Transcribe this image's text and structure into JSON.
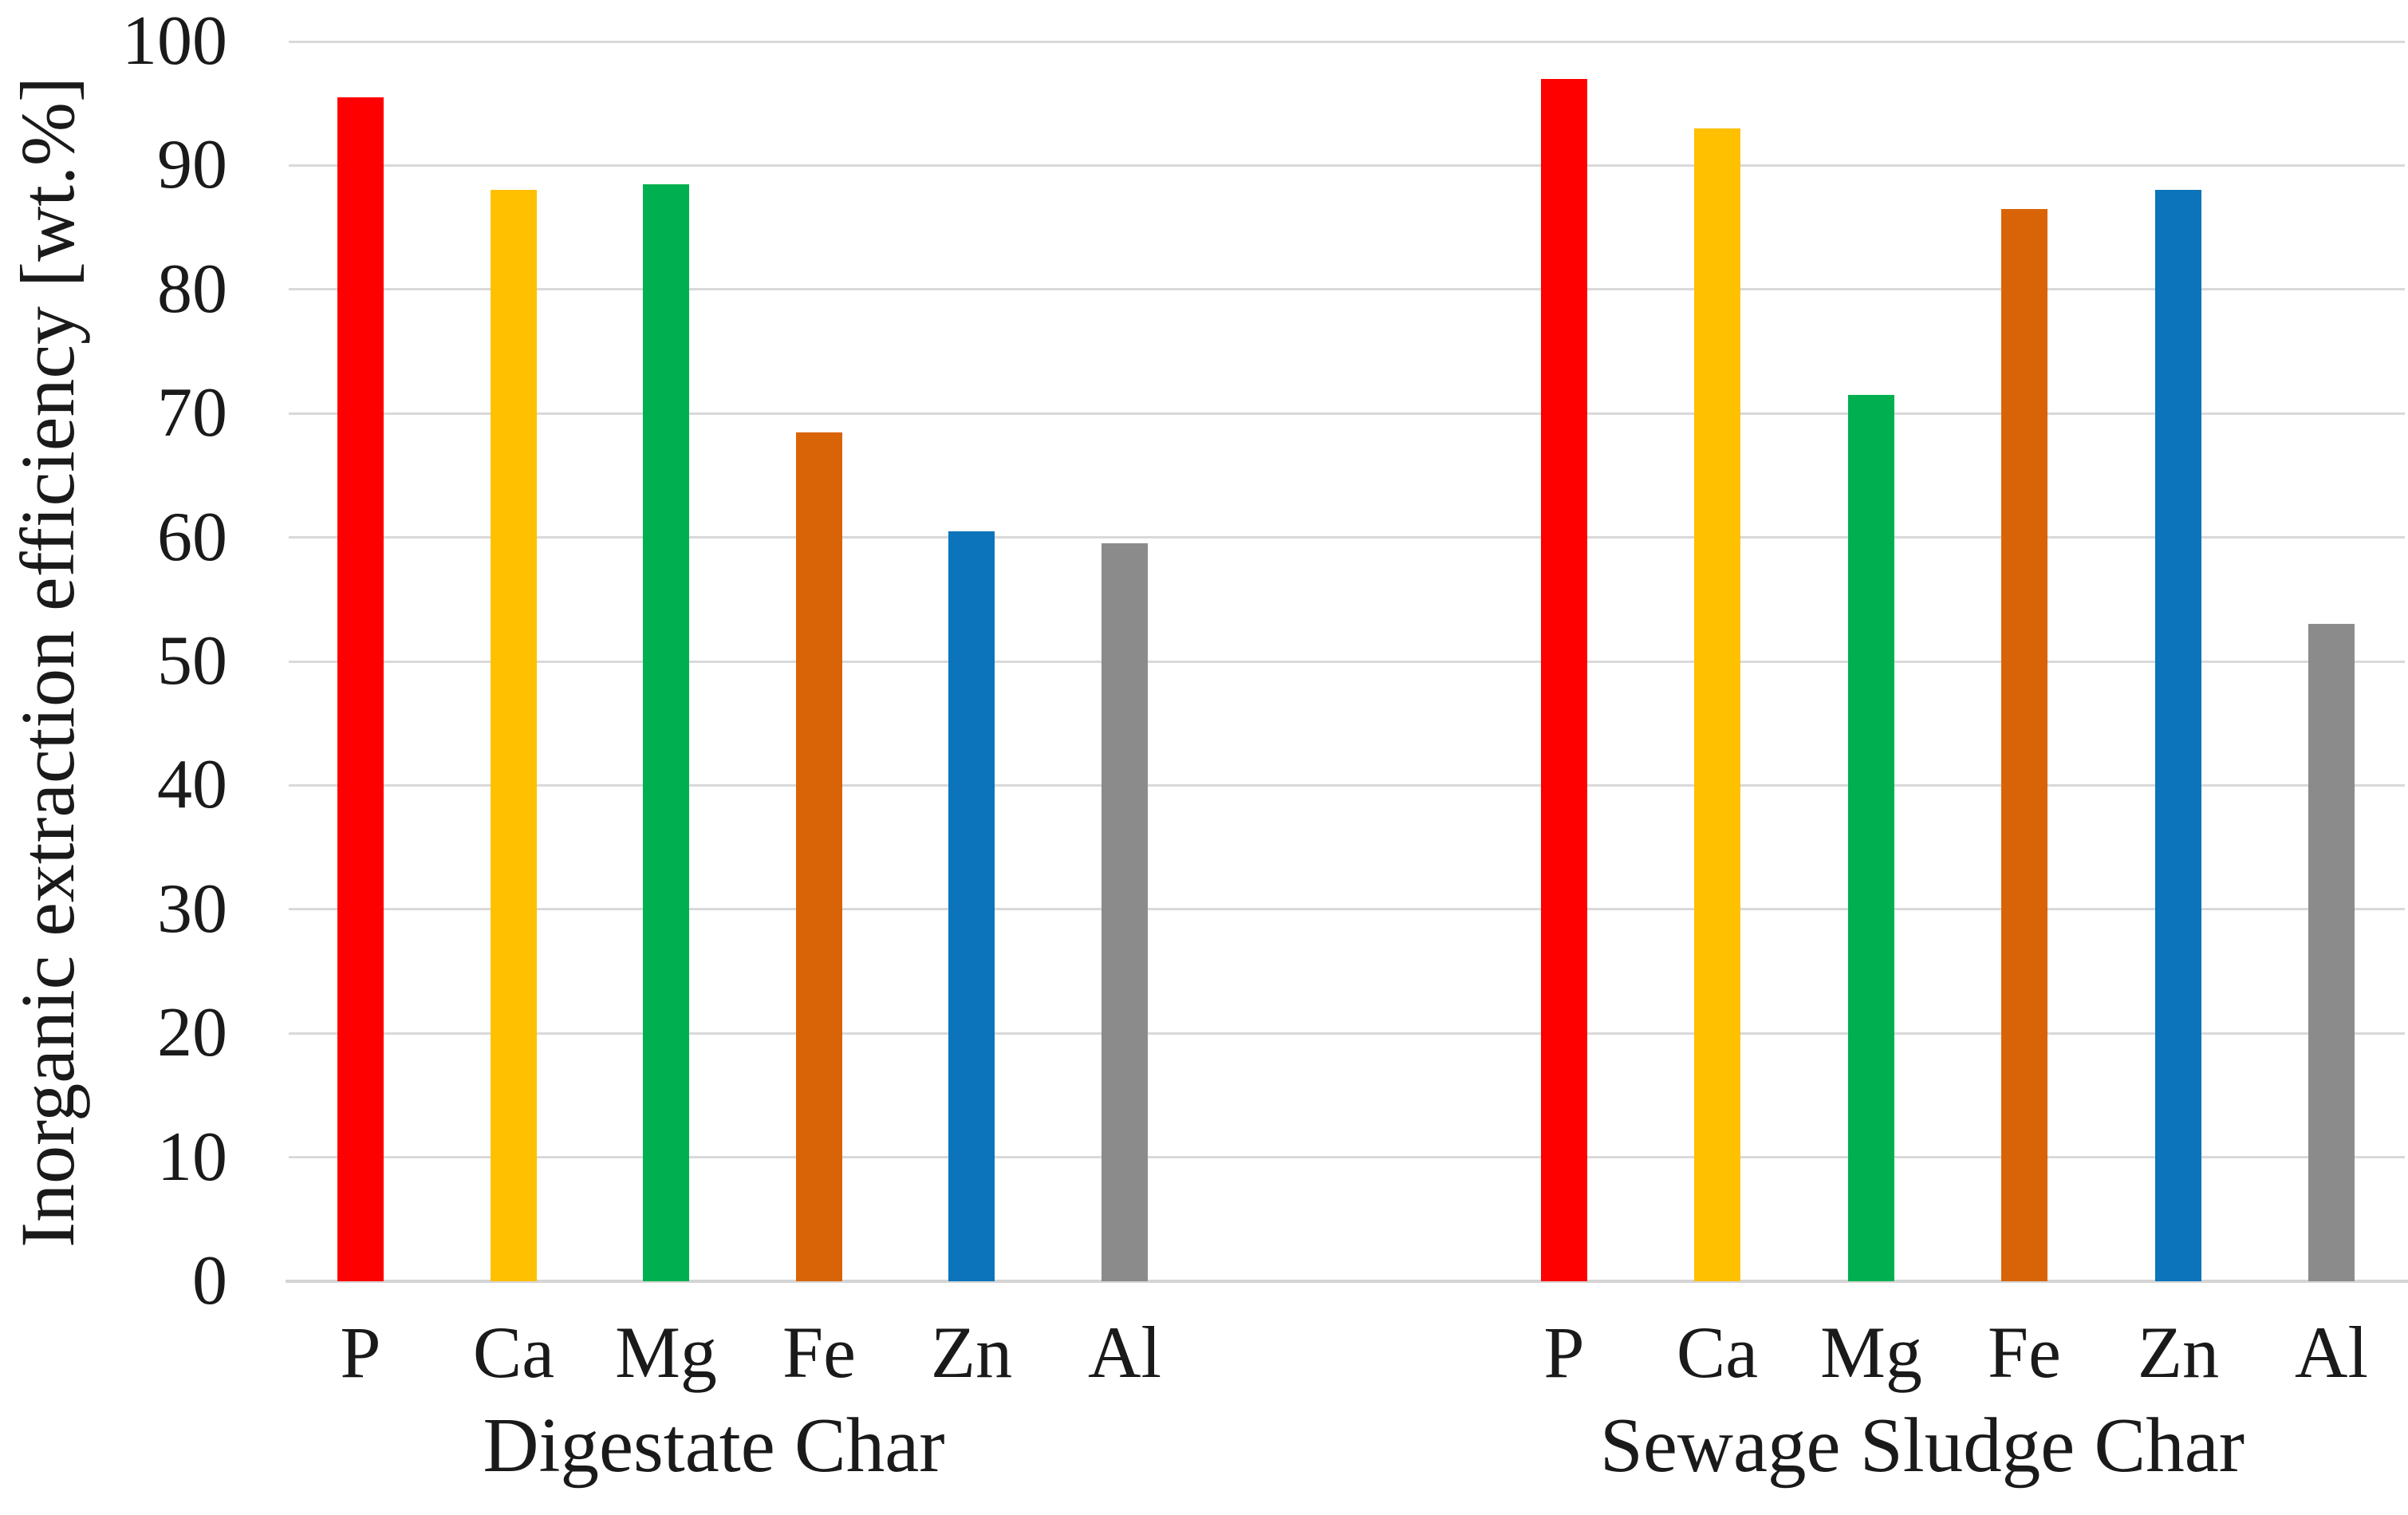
{
  "chart_data": {
    "type": "bar",
    "title": "",
    "ylabel": "Inorganic extraction efficiency [wt.%]",
    "xlabel": "",
    "ylim": [
      0,
      100
    ],
    "ytick_step": 10,
    "ytick_labels": [
      "0",
      "10",
      "20",
      "30",
      "40",
      "50",
      "60",
      "70",
      "80",
      "90",
      "100"
    ],
    "grid": "horizontal",
    "legend": "none",
    "background_color": "#FFFFFF",
    "gridline_color": "#D9D9D9",
    "axis_line_color": "#D4D4D4",
    "text_color": "#1A1A1A",
    "categories": [
      "P",
      "Ca",
      "Mg",
      "Fe",
      "Zn",
      "Al"
    ],
    "bar_colors": [
      "#FF0000",
      "#FFC000",
      "#00B050",
      "#D96408",
      "#0B74BB",
      "#8B8B8B"
    ],
    "groups": [
      {
        "label": "Digestate Char",
        "values": [
          95.5,
          88,
          88.5,
          68.5,
          60.5,
          59.5
        ]
      },
      {
        "label": "Sewage Sludge Char",
        "values": [
          97,
          93,
          71.5,
          86.5,
          88,
          53
        ]
      }
    ]
  }
}
